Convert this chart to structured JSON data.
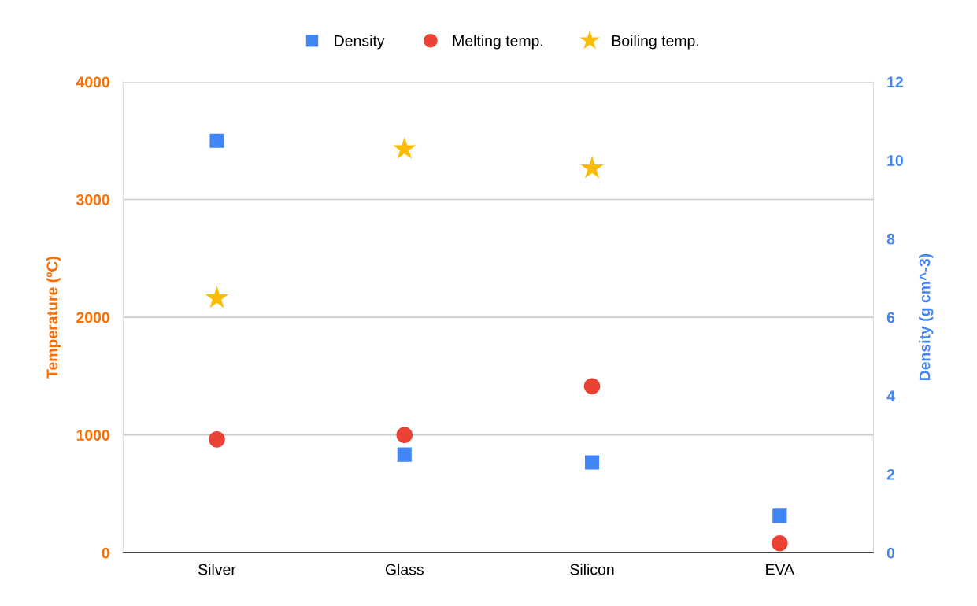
{
  "chart_data": {
    "type": "scatter",
    "ylabel": "Temperature (ºC)",
    "y2label": "Density (g cm^-3)",
    "categories": [
      "Silver",
      "Glass",
      "Silicon",
      "EVA"
    ],
    "series": [
      {
        "name": "Density",
        "color": "#4285f4",
        "marker": "square",
        "axis": "y2",
        "values": [
          10.5,
          2.5,
          2.3,
          0.94
        ]
      },
      {
        "name": "Melting temp.",
        "color": "#ea4335",
        "marker": "circle",
        "values": [
          962,
          1000,
          1414,
          80
        ]
      },
      {
        "name": "Boiling temp.",
        "color": "#fbbc04",
        "marker": "star",
        "values": [
          2162,
          3430,
          3265,
          null
        ]
      }
    ],
    "ylim": [
      0,
      4000
    ],
    "yticks": [
      0,
      1000,
      2000,
      3000,
      4000
    ],
    "y2lim": [
      0,
      12
    ],
    "y2ticks": [
      0,
      2,
      4,
      6,
      8,
      10,
      12
    ],
    "grid": "y",
    "legend": "top"
  }
}
